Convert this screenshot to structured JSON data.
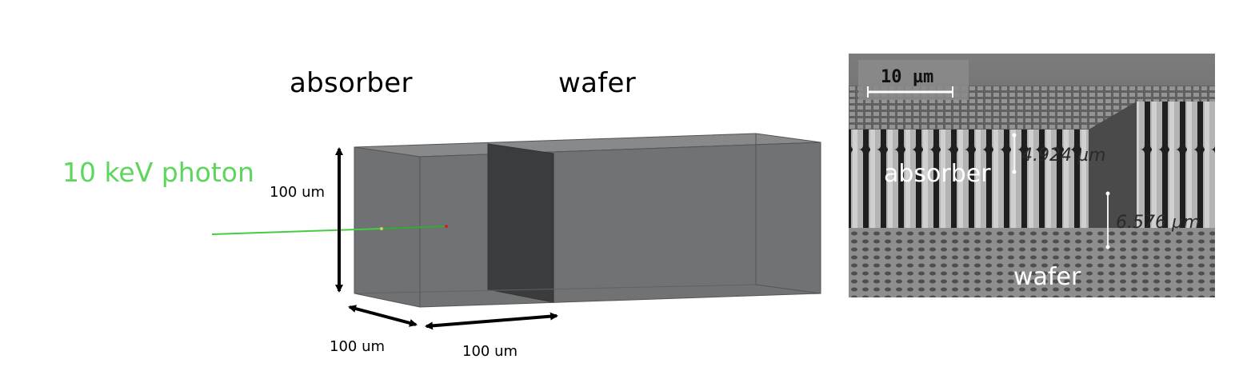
{
  "labels": {
    "absorber": "absorber",
    "wafer": "wafer",
    "photon": "10 keV photon",
    "height": "100 um",
    "depth": "100 um",
    "length": "100 um"
  },
  "sem": {
    "scale": "10 µm",
    "measure_top": "4.924 µm",
    "measure_bottom": "6.576 µm",
    "absorber": "absorber",
    "wafer": "wafer"
  },
  "colors": {
    "photon_beam": "#44cc44",
    "box_fill": "#6e7072",
    "box_dark": "#3a3c3d"
  }
}
